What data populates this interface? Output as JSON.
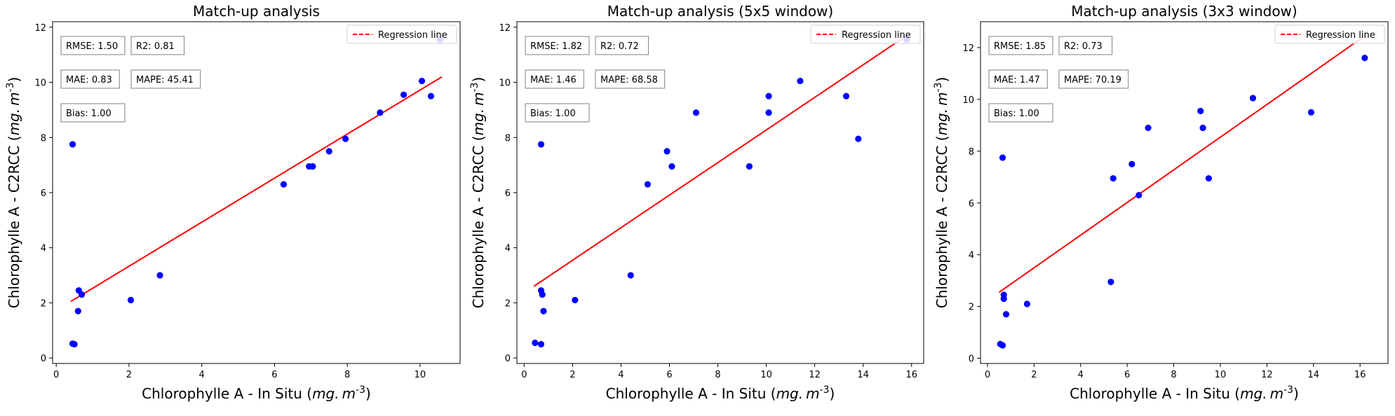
{
  "chart_data": [
    {
      "type": "scatter",
      "title": "Match-up analysis",
      "xlabel": "Chlorophylle A - In Situ ($mg.m^{-3}$)",
      "ylabel": "Chlorophylle A - C2RCC ($mg.m^{-3}$)",
      "xlim": [
        -0.1,
        11.1
      ],
      "ylim": [
        -0.2,
        12.2
      ],
      "xticks": [
        "0",
        "2",
        "4",
        "6",
        "8",
        "10"
      ],
      "xtick_values": [
        0,
        2,
        4,
        6,
        8,
        10
      ],
      "yticks": [
        "0",
        "2",
        "4",
        "6",
        "8",
        "10",
        "12"
      ],
      "ytick_values": [
        0,
        2,
        4,
        6,
        8,
        10,
        12
      ],
      "points": [
        [
          0.45,
          0.52
        ],
        [
          0.5,
          0.5
        ],
        [
          0.45,
          7.75
        ],
        [
          0.6,
          1.7
        ],
        [
          0.62,
          2.45
        ],
        [
          0.7,
          2.3
        ],
        [
          2.05,
          2.1
        ],
        [
          2.85,
          3.0
        ],
        [
          6.25,
          6.3
        ],
        [
          6.95,
          6.95
        ],
        [
          7.05,
          6.95
        ],
        [
          7.5,
          7.5
        ],
        [
          7.95,
          7.95
        ],
        [
          8.9,
          8.9
        ],
        [
          9.55,
          9.55
        ],
        [
          10.05,
          10.05
        ],
        [
          10.3,
          9.5
        ],
        [
          10.55,
          11.55
        ]
      ],
      "regression": {
        "name": "Regression line",
        "x0": 0.4,
        "y0": 2.05,
        "x1": 10.6,
        "y1": 10.2
      },
      "stats": [
        {
          "text": "RMSE: 1.50",
          "row": 1,
          "col": 1
        },
        {
          "text": "R2: 0.81",
          "row": 1,
          "col": 2
        },
        {
          "text": "MAE: 0.83",
          "row": 2,
          "col": 1
        },
        {
          "text": "MAPE: 45.41",
          "row": 2,
          "col": 2
        },
        {
          "text": "Bias: 1.00",
          "row": 3,
          "col": 1
        }
      ],
      "legend": "top-right",
      "grid": false,
      "colors": {
        "points": "#0000ff",
        "line": "#ff0000"
      }
    },
    {
      "type": "scatter",
      "title": "Match-up analysis (5x5 window)",
      "xlabel": "Chlorophylle A - In Situ ($mg.m^{-3}$)",
      "ylabel": "Chlorophylle A - C2RCC ($mg.m^{-3}$)",
      "xlim": [
        -0.3,
        16.5
      ],
      "ylim": [
        -0.2,
        12.2
      ],
      "xticks": [
        "0",
        "2",
        "4",
        "6",
        "8",
        "10",
        "12",
        "14",
        "16"
      ],
      "xtick_values": [
        0,
        2,
        4,
        6,
        8,
        10,
        12,
        14,
        16
      ],
      "yticks": [
        "0",
        "2",
        "4",
        "6",
        "8",
        "10",
        "12"
      ],
      "ytick_values": [
        0,
        2,
        4,
        6,
        8,
        10,
        12
      ],
      "points": [
        [
          0.45,
          0.55
        ],
        [
          0.7,
          0.5
        ],
        [
          0.7,
          7.75
        ],
        [
          0.7,
          2.45
        ],
        [
          0.75,
          2.3
        ],
        [
          0.8,
          1.7
        ],
        [
          2.1,
          2.1
        ],
        [
          4.4,
          3.0
        ],
        [
          5.1,
          6.3
        ],
        [
          5.9,
          7.5
        ],
        [
          6.1,
          6.95
        ],
        [
          7.1,
          8.9
        ],
        [
          9.3,
          6.95
        ],
        [
          10.1,
          9.5
        ],
        [
          10.1,
          8.9
        ],
        [
          11.4,
          10.05
        ],
        [
          13.3,
          9.5
        ],
        [
          13.8,
          7.95
        ],
        [
          15.8,
          11.55
        ]
      ],
      "regression": {
        "name": "Regression line",
        "x0": 0.4,
        "y0": 2.6,
        "x1": 15.8,
        "y1": 11.7
      },
      "stats": [
        {
          "text": "RMSE: 1.82",
          "row": 1,
          "col": 1
        },
        {
          "text": "R2: 0.72",
          "row": 1,
          "col": 2
        },
        {
          "text": "MAE: 1.46",
          "row": 2,
          "col": 1
        },
        {
          "text": "MAPE: 68.58",
          "row": 2,
          "col": 2
        },
        {
          "text": "Bias: 1.00",
          "row": 3,
          "col": 1
        }
      ],
      "legend": "top-right",
      "grid": false,
      "colors": {
        "points": "#0000ff",
        "line": "#ff0000"
      }
    },
    {
      "type": "scatter",
      "title": "Match-up analysis (3x3 window)",
      "xlabel": "Chlorophylle A - In Situ ($mg.m^{-3}$)",
      "ylabel": "Chlorophylle A - C2RCC ($mg.m^{-3}$)",
      "xlim": [
        -0.3,
        17.2
      ],
      "ylim": [
        -0.2,
        13.0
      ],
      "xticks": [
        "0",
        "2",
        "4",
        "6",
        "8",
        "10",
        "12",
        "14",
        "16"
      ],
      "xtick_values": [
        0,
        2,
        4,
        6,
        8,
        10,
        12,
        14,
        16
      ],
      "yticks": [
        "0",
        "2",
        "4",
        "6",
        "8",
        "10",
        "12"
      ],
      "ytick_values": [
        0,
        2,
        4,
        6,
        8,
        10,
        12
      ],
      "points": [
        [
          0.55,
          0.55
        ],
        [
          0.65,
          0.5
        ],
        [
          0.65,
          7.75
        ],
        [
          0.7,
          2.45
        ],
        [
          0.7,
          2.3
        ],
        [
          0.8,
          1.7
        ],
        [
          1.7,
          2.1
        ],
        [
          5.3,
          2.95
        ],
        [
          5.4,
          6.95
        ],
        [
          6.2,
          7.5
        ],
        [
          6.5,
          6.3
        ],
        [
          6.9,
          8.9
        ],
        [
          9.15,
          9.55
        ],
        [
          9.25,
          8.9
        ],
        [
          9.5,
          6.95
        ],
        [
          11.4,
          10.05
        ],
        [
          13.9,
          9.5
        ],
        [
          16.2,
          11.6
        ]
      ],
      "regression": {
        "name": "Regression line",
        "x0": 0.5,
        "y0": 2.55,
        "x1": 16.2,
        "y1": 12.45
      },
      "stats": [
        {
          "text": "RMSE: 1.85",
          "row": 1,
          "col": 1
        },
        {
          "text": "R2: 0.73",
          "row": 1,
          "col": 2
        },
        {
          "text": "MAE: 1.47",
          "row": 2,
          "col": 1
        },
        {
          "text": "MAPE: 70.19",
          "row": 2,
          "col": 2
        },
        {
          "text": "Bias: 1.00",
          "row": 3,
          "col": 1
        }
      ],
      "legend": "top-right",
      "grid": false,
      "colors": {
        "points": "#0000ff",
        "line": "#ff0000"
      }
    }
  ]
}
